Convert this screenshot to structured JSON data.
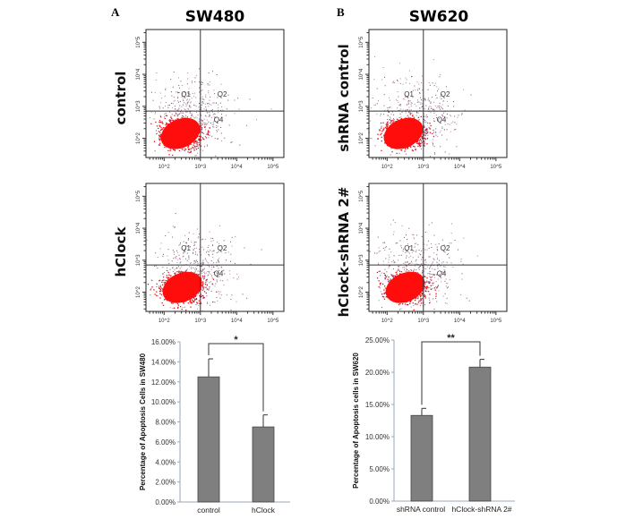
{
  "panel_labels": [
    "A",
    "B"
  ],
  "chart_data": [
    {
      "type": "scatter",
      "panel": "A",
      "column_title": "SW480",
      "row_label": "control",
      "x_ticks": [
        "10^2",
        "10^3",
        "10^4",
        "10^5"
      ],
      "y_ticks": [
        "10^2",
        "10^3",
        "10^4",
        "10^5"
      ],
      "quadrant_labels": [
        "Q1",
        "Q2",
        "Q4"
      ],
      "xlim_log10": [
        1.5,
        5.3
      ],
      "ylim_log10": [
        1.4,
        5.4
      ],
      "gate_x_log10": 3.0,
      "gate_y_log10": 2.85
    },
    {
      "type": "scatter",
      "panel": "A",
      "row_label": "hClock",
      "x_ticks": [
        "10^2",
        "10^3",
        "10^4",
        "10^5"
      ],
      "y_ticks": [
        "10^2",
        "10^3",
        "10^4",
        "10^5"
      ],
      "quadrant_labels": [
        "Q1",
        "Q2",
        "Q4"
      ],
      "xlim_log10": [
        1.5,
        5.3
      ],
      "ylim_log10": [
        1.4,
        5.4
      ],
      "gate_x_log10": 3.0,
      "gate_y_log10": 2.85
    },
    {
      "type": "scatter",
      "panel": "B",
      "column_title": "SW620",
      "row_label": "shRNA control",
      "x_ticks": [
        "10^2",
        "10^3",
        "10^4",
        "10^5"
      ],
      "y_ticks": [
        "10^2",
        "10^3",
        "10^4",
        "10^5"
      ],
      "quadrant_labels": [
        "Q1",
        "Q2",
        "Q4"
      ],
      "xlim_log10": [
        1.5,
        5.3
      ],
      "ylim_log10": [
        1.4,
        5.4
      ],
      "gate_x_log10": 3.0,
      "gate_y_log10": 2.85
    },
    {
      "type": "scatter",
      "panel": "B",
      "row_label": "hClock-shRNA 2#",
      "x_ticks": [
        "10^2",
        "10^3",
        "10^4",
        "10^5"
      ],
      "y_ticks": [
        "10^2",
        "10^3",
        "10^4",
        "10^5"
      ],
      "quadrant_labels": [
        "Q1",
        "Q2",
        "Q4"
      ],
      "xlim_log10": [
        1.5,
        5.3
      ],
      "ylim_log10": [
        1.4,
        5.4
      ],
      "gate_x_log10": 3.0,
      "gate_y_log10": 2.85
    },
    {
      "type": "bar",
      "panel": "A",
      "categories": [
        "control",
        "hClock"
      ],
      "values": [
        12.5,
        7.5
      ],
      "errors": [
        1.8,
        1.2
      ],
      "ylabel": "Percentage of Apoptosis Cells in SW480",
      "ylim": [
        0,
        16
      ],
      "yticks": [
        "0.00%",
        "2.00%",
        "4.00%",
        "6.00%",
        "8.00%",
        "10.00%",
        "12.00%",
        "14.00%",
        "16.00%"
      ],
      "significance": "*",
      "bar_color": "#7f7f7f"
    },
    {
      "type": "bar",
      "panel": "B",
      "categories": [
        "shRNA control",
        "hClock-shRNA 2#"
      ],
      "values": [
        13.3,
        20.8
      ],
      "errors": [
        1.1,
        1.2
      ],
      "ylabel": "Percentage of Apoptosis cells in SW620",
      "ylim": [
        0,
        25
      ],
      "yticks": [
        "0.00%",
        "5.00%",
        "10.00%",
        "15.00%",
        "20.00%",
        "25.00%"
      ],
      "significance": "**",
      "bar_color": "#7f7f7f"
    }
  ]
}
